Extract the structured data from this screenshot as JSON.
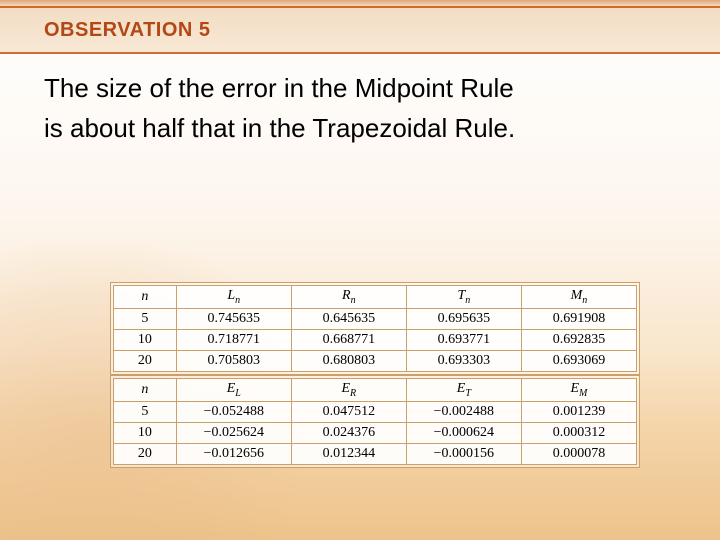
{
  "header": {
    "title": "OBSERVATION 5"
  },
  "body": {
    "line1": "The size of the error in the Midpoint Rule",
    "line2": "is about half that in the Trapezoidal Rule."
  },
  "colors": {
    "accent": "#d46a2e",
    "title_text": "#b24816",
    "table_border": "#c9a06a",
    "band_grad_top": "#f3ddc3",
    "band_grad_bot": "#f7e8d5"
  },
  "table1": {
    "headers": [
      "n",
      "L",
      "R",
      "T",
      "M"
    ],
    "header_sub": [
      "",
      "n",
      "n",
      "n",
      "n"
    ],
    "rows": [
      [
        "5",
        "0.745635",
        "0.645635",
        "0.695635",
        "0.691908"
      ],
      [
        "10",
        "0.718771",
        "0.668771",
        "0.693771",
        "0.692835"
      ],
      [
        "20",
        "0.705803",
        "0.680803",
        "0.693303",
        "0.693069"
      ]
    ]
  },
  "table2": {
    "headers": [
      "n",
      "E",
      "E",
      "E",
      "E"
    ],
    "header_sub": [
      "",
      "L",
      "R",
      "T",
      "M"
    ],
    "rows": [
      [
        "5",
        "−0.052488",
        "0.047512",
        "−0.002488",
        "0.001239"
      ],
      [
        "10",
        "−0.025624",
        "0.024376",
        "−0.000624",
        "0.000312"
      ],
      [
        "20",
        "−0.012656",
        "0.012344",
        "−0.000156",
        "0.000078"
      ]
    ]
  }
}
